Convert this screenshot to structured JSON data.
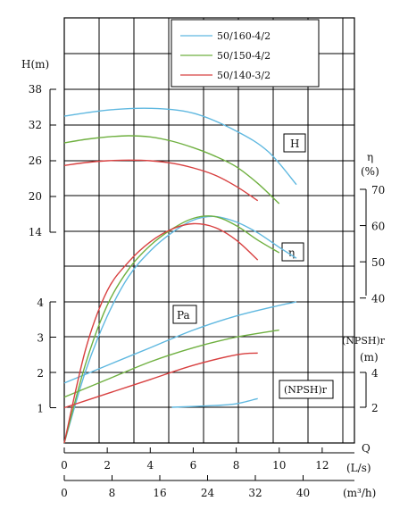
{
  "chart_data": {
    "type": "line",
    "title": "",
    "legend": {
      "placement": "top-right",
      "entries": [
        {
          "name": "50/160-4/2",
          "color": "#5fb8e0"
        },
        {
          "name": "50/150-4/2",
          "color": "#6fb040"
        },
        {
          "name": "50/140-3/2",
          "color": "#d84040"
        }
      ]
    },
    "grid": true,
    "x_axis": {
      "label_q": "Q",
      "unit_ls": "(L/s)",
      "unit_m3h": "(m³/h)",
      "range_ls": [
        0,
        13.5
      ],
      "ticks_ls": [
        0,
        2,
        4,
        6,
        8,
        10,
        12
      ],
      "ticks_m3h": [
        0,
        8,
        16,
        24,
        32,
        40
      ]
    },
    "y_axes": {
      "head": {
        "label": "H(m)",
        "range": [
          14,
          38
        ],
        "ticks": [
          14,
          20,
          26,
          32,
          38
        ]
      },
      "power": {
        "label": "",
        "range": [
          1,
          4
        ],
        "ticks": [
          1,
          2,
          3,
          4
        ]
      },
      "efficiency": {
        "label": "η",
        "unit": "(%)",
        "range": [
          40,
          70
        ],
        "ticks": [
          40,
          50,
          60,
          70
        ]
      },
      "npsh": {
        "label": "(NPSH)r",
        "unit": "(m)",
        "range": [
          2,
          4
        ],
        "ticks": [
          2,
          4
        ]
      }
    },
    "annotations": {
      "H": "H",
      "eta": "η",
      "Pa": "Pa",
      "npsh": "(NPSH)r"
    },
    "series": [
      {
        "name": "50/160-4/2",
        "color": "#5fb8e0",
        "head": [
          [
            0,
            33.5
          ],
          [
            2,
            34.5
          ],
          [
            4,
            34.8
          ],
          [
            6,
            34
          ],
          [
            8,
            31
          ],
          [
            9.5,
            27.5
          ],
          [
            10.8,
            22
          ]
        ],
        "efficiency": [
          [
            0,
            0
          ],
          [
            1,
            20
          ],
          [
            2,
            35
          ],
          [
            3,
            46
          ],
          [
            4,
            53
          ],
          [
            5,
            58
          ],
          [
            6,
            61.5
          ],
          [
            7,
            62.5
          ],
          [
            8,
            61
          ],
          [
            9,
            58
          ],
          [
            10,
            54
          ],
          [
            10.8,
            51
          ]
        ],
        "power": [
          [
            0,
            1.7
          ],
          [
            2,
            2.2
          ],
          [
            4,
            2.7
          ],
          [
            6,
            3.2
          ],
          [
            8,
            3.6
          ],
          [
            10,
            3.9
          ],
          [
            10.8,
            4.0
          ]
        ],
        "npsh": [
          [
            5,
            2.0
          ],
          [
            7,
            2.1
          ],
          [
            8,
            2.2
          ],
          [
            9,
            2.5
          ]
        ]
      },
      {
        "name": "50/150-4/2",
        "color": "#6fb040",
        "head": [
          [
            0,
            29
          ],
          [
            1,
            29.6
          ],
          [
            2,
            30
          ],
          [
            3,
            30.2
          ],
          [
            4,
            30
          ],
          [
            5,
            29.3
          ],
          [
            6,
            28.2
          ],
          [
            7,
            26.8
          ],
          [
            8,
            25
          ],
          [
            9,
            22.2
          ],
          [
            10,
            18.8
          ]
        ],
        "efficiency": [
          [
            0,
            0
          ],
          [
            1,
            22
          ],
          [
            2,
            38
          ],
          [
            3,
            48
          ],
          [
            4,
            54.5
          ],
          [
            5,
            59
          ],
          [
            6,
            62
          ],
          [
            7,
            62.5
          ],
          [
            8,
            60
          ],
          [
            9,
            56
          ],
          [
            10,
            52.5
          ]
        ],
        "power": [
          [
            0,
            1.3
          ],
          [
            2,
            1.8
          ],
          [
            4,
            2.3
          ],
          [
            6,
            2.7
          ],
          [
            8,
            3.0
          ],
          [
            10,
            3.2
          ]
        ],
        "npsh": []
      },
      {
        "name": "50/140-3/2",
        "color": "#d84040",
        "head": [
          [
            0,
            25.2
          ],
          [
            1,
            25.7
          ],
          [
            2,
            26
          ],
          [
            3,
            26.1
          ],
          [
            4,
            26
          ],
          [
            5,
            25.6
          ],
          [
            6,
            24.8
          ],
          [
            7,
            23.6
          ],
          [
            8,
            21.7
          ],
          [
            9,
            19.3
          ]
        ],
        "efficiency": [
          [
            0,
            0
          ],
          [
            1,
            26
          ],
          [
            2,
            42
          ],
          [
            3,
            50
          ],
          [
            4,
            55.5
          ],
          [
            5,
            59
          ],
          [
            6,
            60.5
          ],
          [
            7,
            59.5
          ],
          [
            8,
            56
          ],
          [
            9,
            50.5
          ]
        ],
        "power": [
          [
            0,
            1.0
          ],
          [
            2,
            1.4
          ],
          [
            4,
            1.8
          ],
          [
            6,
            2.2
          ],
          [
            8,
            2.5
          ],
          [
            9,
            2.55
          ]
        ],
        "npsh": []
      }
    ]
  }
}
